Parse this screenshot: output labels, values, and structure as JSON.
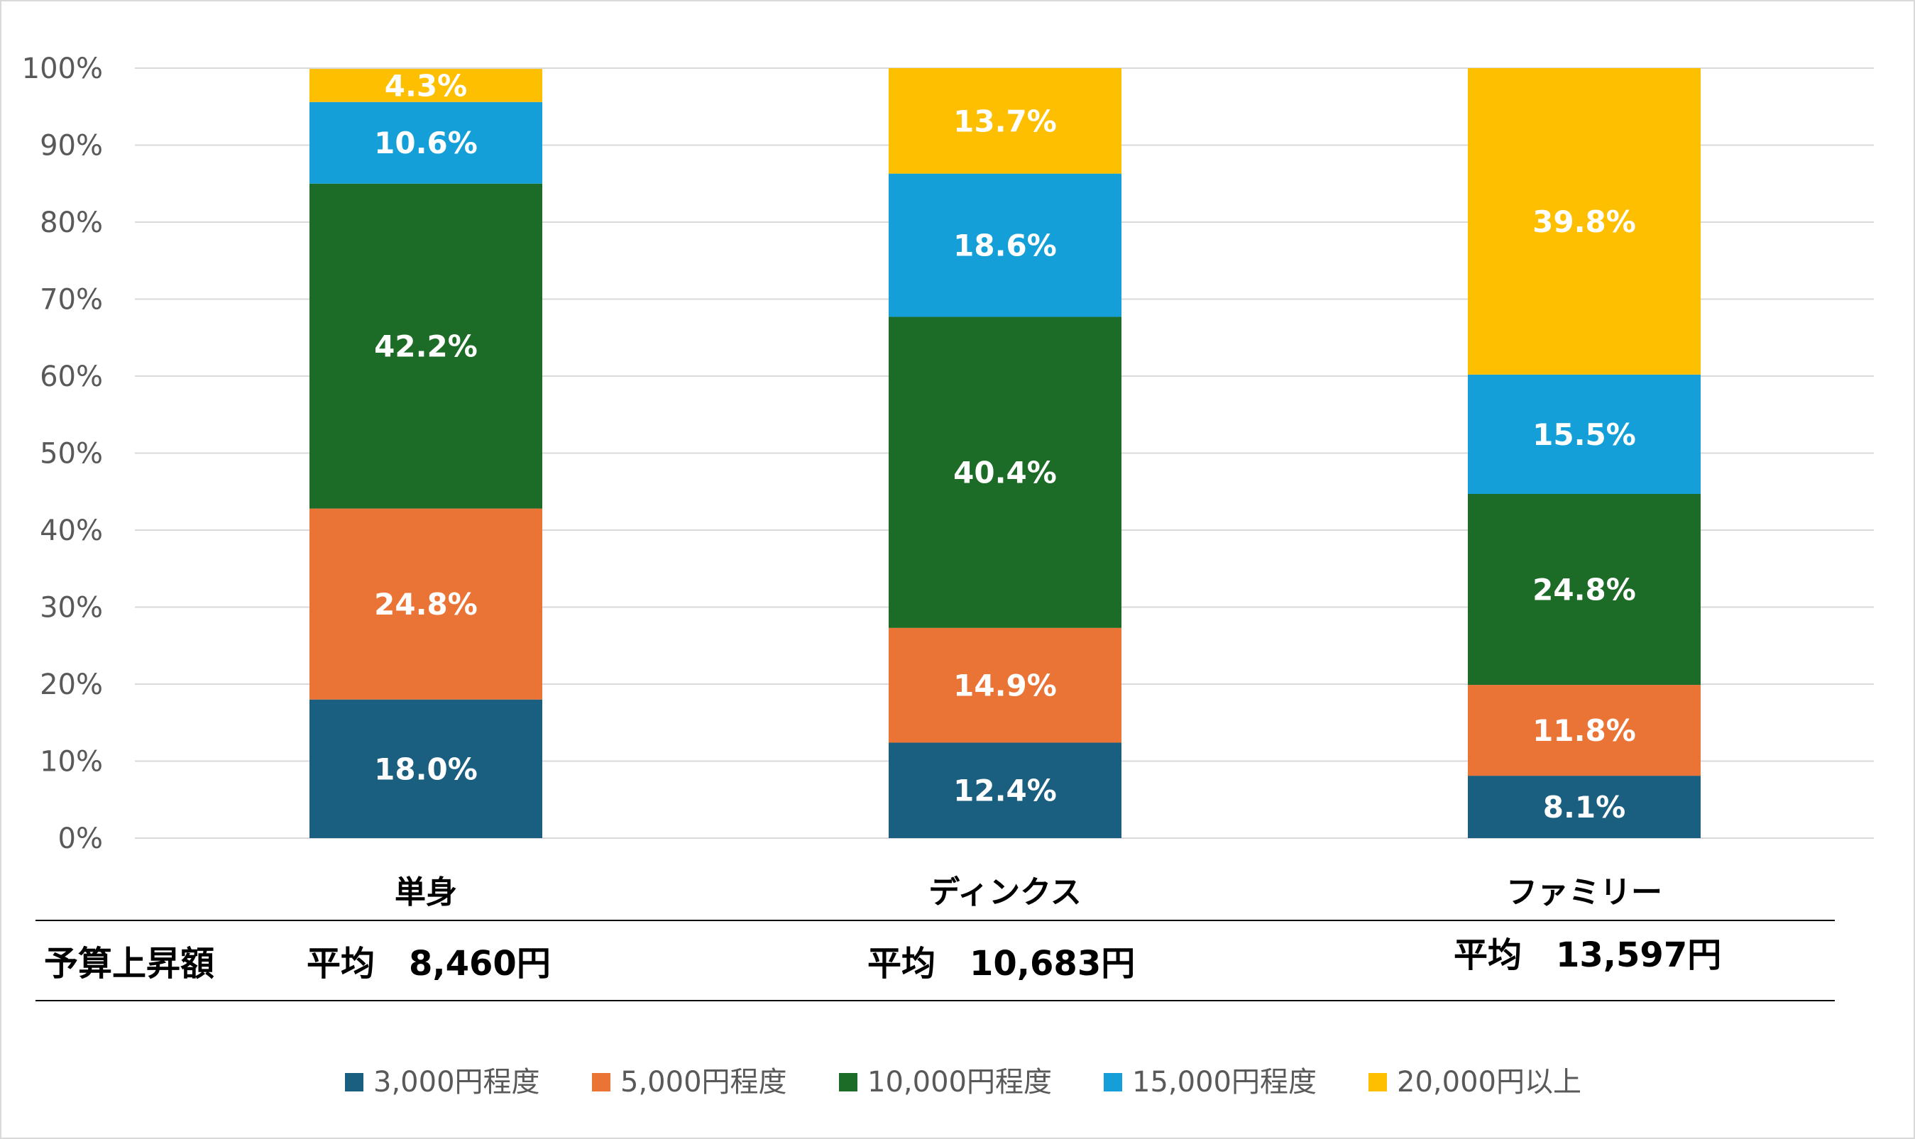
{
  "chart_data": {
    "type": "bar",
    "stacked": true,
    "percent": true,
    "categories": [
      "単身",
      "ディンクス",
      "ファミリー"
    ],
    "series": [
      {
        "name": "3,000円程度",
        "color": "#1a5e80",
        "values": [
          18.0,
          12.4,
          8.1
        ],
        "labels": [
          "18.0%",
          "12.4%",
          "8.1%"
        ]
      },
      {
        "name": "5,000円程度",
        "color": "#ea7336",
        "values": [
          24.8,
          14.9,
          11.8
        ],
        "labels": [
          "24.8%",
          "14.9%",
          "11.8%"
        ]
      },
      {
        "name": "10,000円程度",
        "color": "#1c6b26",
        "values": [
          42.2,
          40.4,
          24.8
        ],
        "labels": [
          "42.2%",
          "40.4%",
          "24.8%"
        ]
      },
      {
        "name": "15,000円程度",
        "color": "#149fd8",
        "values": [
          10.6,
          18.6,
          15.5
        ],
        "labels": [
          "10.6%",
          "18.6%",
          "15.5%"
        ]
      },
      {
        "name": "20,000円以上",
        "color": "#fdbf00",
        "values": [
          4.3,
          13.7,
          39.8
        ],
        "labels": [
          "4.3%",
          "13.7%",
          "39.8%"
        ]
      }
    ],
    "ylim": [
      0,
      100
    ],
    "yticks": [
      "0%",
      "10%",
      "20%",
      "30%",
      "40%",
      "50%",
      "60%",
      "70%",
      "80%",
      "90%",
      "100%"
    ],
    "grid": true,
    "legend": "bottom"
  },
  "table": {
    "row_label": "予算上昇額",
    "averages": [
      "平均　8,460円",
      "平均　10,683円",
      "平均　13,597円"
    ]
  }
}
